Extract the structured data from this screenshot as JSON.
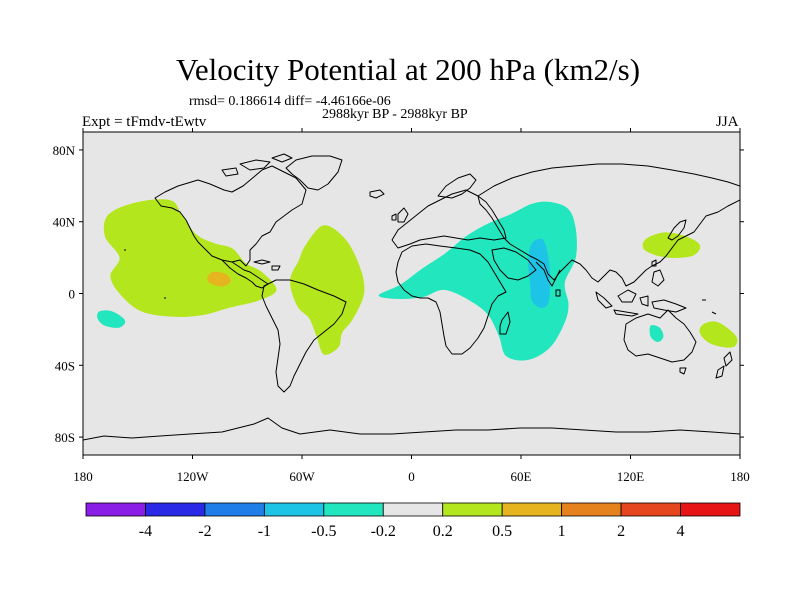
{
  "chart_data": {
    "type": "heatmap",
    "title": "Velocity Potential at 200 hPa (km2/s)",
    "stats_text": "rmsd= 0.186614 diff= -4.46166e-06",
    "period_text": "2988kyr BP - 2988kyr BP",
    "left_label": "Expt = tFmdv-tEwtv",
    "right_label": "JJA",
    "xlim": [
      -180,
      180
    ],
    "ylim": [
      -90,
      90
    ],
    "x_ticks": [
      {
        "value": -180,
        "label": "180"
      },
      {
        "value": -120,
        "label": "120W"
      },
      {
        "value": -60,
        "label": "60W"
      },
      {
        "value": 0,
        "label": "0"
      },
      {
        "value": 60,
        "label": "60E"
      },
      {
        "value": 120,
        "label": "120E"
      },
      {
        "value": 180,
        "label": "180"
      }
    ],
    "y_ticks": [
      {
        "value": 80,
        "label": "80N"
      },
      {
        "value": 40,
        "label": "40N"
      },
      {
        "value": 0,
        "label": "0"
      },
      {
        "value": -40,
        "label": "40S"
      },
      {
        "value": -80,
        "label": "80S"
      }
    ],
    "colorbar": {
      "colors": [
        "#8a1ee6",
        "#2a2ae6",
        "#1f7ee8",
        "#1ec4e6",
        "#21e6be",
        "#e6e6e6",
        "#b4e61e",
        "#e6b41e",
        "#e6821e",
        "#e6461e",
        "#e61414"
      ],
      "labels": [
        "-4",
        "-2",
        "-1",
        "-0.5",
        "-0.2",
        "0.2",
        "0.5",
        "1",
        "2",
        "4"
      ]
    },
    "anomaly_regions": [
      {
        "name": "east-pacific-positive",
        "level": "0.5",
        "color": "#b4e61e",
        "points": [
          [
            -166,
            44
          ],
          [
            -150,
            51
          ],
          [
            -132,
            52
          ],
          [
            -126,
            44
          ],
          [
            -118,
            33
          ],
          [
            -108,
            28
          ],
          [
            -98,
            25
          ],
          [
            -91,
            17
          ],
          [
            -82,
            12
          ],
          [
            -74,
            2
          ],
          [
            -84,
            -4
          ],
          [
            -100,
            -8
          ],
          [
            -114,
            -12
          ],
          [
            -130,
            -13
          ],
          [
            -148,
            -10
          ],
          [
            -160,
            0
          ],
          [
            -165,
            10
          ],
          [
            -160,
            20
          ],
          [
            -168,
            32
          ]
        ]
      },
      {
        "name": "east-pacific-core",
        "level": "1",
        "color": "#e6b41e",
        "points": [
          [
            -109,
            12
          ],
          [
            -102,
            11
          ],
          [
            -99,
            7
          ],
          [
            -103,
            4
          ],
          [
            -109,
            5
          ],
          [
            -112,
            8
          ]
        ]
      },
      {
        "name": "atlantic-south-america-positive",
        "level": "0.5",
        "color": "#b4e61e",
        "points": [
          [
            -58,
            27
          ],
          [
            -48,
            38
          ],
          [
            -36,
            30
          ],
          [
            -28,
            14
          ],
          [
            -26,
            0
          ],
          [
            -32,
            -14
          ],
          [
            -38,
            -22
          ],
          [
            -40,
            -30
          ],
          [
            -48,
            -34
          ],
          [
            -52,
            -24
          ],
          [
            -56,
            -14
          ],
          [
            -62,
            -8
          ],
          [
            -66,
            2
          ],
          [
            -66,
            10
          ],
          [
            -62,
            18
          ]
        ]
      },
      {
        "name": "indian-ocean-negative",
        "level": "-0.2",
        "color": "#21e6be",
        "points": [
          [
            -18,
            -1
          ],
          [
            -6,
            5
          ],
          [
            6,
            14
          ],
          [
            18,
            22
          ],
          [
            30,
            32
          ],
          [
            42,
            39
          ],
          [
            54,
            44
          ],
          [
            66,
            50
          ],
          [
            76,
            51
          ],
          [
            86,
            47
          ],
          [
            90,
            36
          ],
          [
            90,
            20
          ],
          [
            84,
            6
          ],
          [
            86,
            -6
          ],
          [
            84,
            -16
          ],
          [
            76,
            -30
          ],
          [
            64,
            -37
          ],
          [
            52,
            -35
          ],
          [
            48,
            -24
          ],
          [
            42,
            -12
          ],
          [
            32,
            -4
          ],
          [
            18,
            2
          ],
          [
            6,
            -2
          ],
          [
            -8,
            -3
          ]
        ]
      },
      {
        "name": "arabian-sea-core",
        "level": "-0.5",
        "color": "#1ec4e6",
        "points": [
          [
            66,
            28
          ],
          [
            72,
            30
          ],
          [
            75,
            20
          ],
          [
            76,
            8
          ],
          [
            75,
            -5
          ],
          [
            71,
            -8
          ],
          [
            66,
            -4
          ],
          [
            65,
            6
          ],
          [
            64,
            18
          ]
        ]
      },
      {
        "name": "west-pacific-positive",
        "level": "0.5",
        "color": "#b4e61e",
        "points": [
          [
            128,
            30
          ],
          [
            138,
            34
          ],
          [
            150,
            32
          ],
          [
            158,
            27
          ],
          [
            154,
            21
          ],
          [
            140,
            20
          ],
          [
            128,
            24
          ]
        ]
      },
      {
        "name": "southwest-pacific-positive",
        "level": "0.5",
        "color": "#b4e61e",
        "points": [
          [
            160,
            -17
          ],
          [
            168,
            -16
          ],
          [
            178,
            -24
          ],
          [
            176,
            -30
          ],
          [
            164,
            -28
          ],
          [
            158,
            -22
          ]
        ]
      },
      {
        "name": "south-pacific-negative",
        "level": "-0.2",
        "color": "#21e6be",
        "points": [
          [
            -171,
            -10
          ],
          [
            -164,
            -10
          ],
          [
            -157,
            -15
          ],
          [
            -160,
            -19
          ],
          [
            -168,
            -18
          ],
          [
            -172,
            -14
          ]
        ]
      },
      {
        "name": "australia-negative",
        "level": "-0.2",
        "color": "#21e6be",
        "points": [
          [
            131,
            -18
          ],
          [
            136,
            -19
          ],
          [
            138,
            -24
          ],
          [
            135,
            -27
          ],
          [
            131,
            -24
          ]
        ]
      }
    ]
  }
}
